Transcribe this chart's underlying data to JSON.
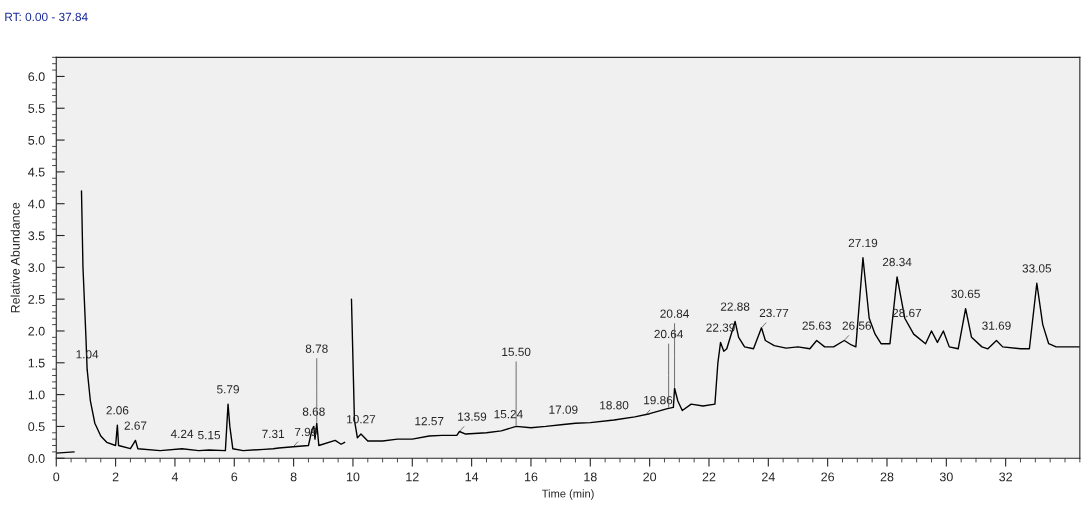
{
  "chart_data": {
    "type": "line",
    "title": "RT: 0.00 - 37.84",
    "xlabel": "Time (min)",
    "ylabel": "Relative Abundance",
    "xlim": [
      0,
      34.5
    ],
    "ylim": [
      0,
      6.3
    ],
    "xticks": [
      0,
      2,
      4,
      6,
      8,
      10,
      12,
      14,
      16,
      18,
      20,
      22,
      24,
      26,
      28,
      30,
      32
    ],
    "yticks": [
      {
        "value": 0,
        "label": "0.0"
      },
      0.5,
      {
        "value": 1,
        "label": "1.0"
      },
      1.5,
      {
        "value": 2,
        "label": "2.0"
      },
      2.5,
      {
        "value": 3,
        "label": "3.0"
      },
      3.5,
      {
        "value": 4,
        "label": "4.0"
      },
      4.5,
      {
        "value": 5,
        "label": "5.0"
      },
      5.5,
      {
        "value": 6,
        "label": "6.0"
      }
    ],
    "grid": false,
    "legend": false,
    "marker": "none",
    "line_style": "solid",
    "series": [
      {
        "color": "#000000",
        "x": [
          0,
          0.6,
          0.62,
          0.8,
          0.85,
          0.9,
          1.0,
          1.04,
          1.15,
          1.3,
          1.5,
          1.7,
          2.0,
          2.06,
          2.1,
          2.5,
          2.67,
          2.75,
          3.5,
          4.24,
          4.8,
          5.15,
          5.7,
          5.79,
          5.85,
          5.95,
          6.3,
          7.0,
          7.31,
          7.5,
          7.99,
          8.5,
          8.62,
          8.68,
          8.72,
          8.78,
          8.85,
          9.4,
          9.6,
          9.72,
          9.78,
          9.9,
          9.95,
          10.05,
          10.15,
          10.27,
          10.5,
          11.0,
          11.5,
          12.0,
          12.57,
          13.0,
          13.5,
          13.59,
          13.8,
          14.5,
          15.0,
          15.5,
          16.0,
          16.5,
          17.09,
          17.5,
          18.0,
          18.8,
          19.5,
          20.0,
          20.6,
          20.8,
          20.84,
          20.95,
          21.1,
          21.4,
          21.8,
          22.2,
          22.3,
          22.39,
          22.5,
          22.6,
          22.88,
          23.0,
          23.2,
          23.5,
          23.77,
          23.9,
          24.2,
          24.6,
          25.0,
          25.4,
          25.63,
          25.9,
          26.2,
          26.56,
          26.8,
          26.95,
          27.19,
          27.4,
          27.6,
          27.8,
          28.1,
          28.34,
          28.6,
          28.9,
          29.3,
          29.5,
          29.7,
          29.9,
          30.1,
          30.4,
          30.65,
          30.85,
          31.2,
          31.4,
          31.69,
          31.9,
          32.5,
          32.8,
          33.05,
          33.25,
          33.45,
          33.7,
          34.5
        ],
        "values": [
          0.08,
          0.1,
          null,
          null,
          4.2,
          3.0,
          1.9,
          1.4,
          0.9,
          0.55,
          0.35,
          0.25,
          0.2,
          0.52,
          0.2,
          0.15,
          0.28,
          0.15,
          0.12,
          0.15,
          0.12,
          0.13,
          0.12,
          0.85,
          0.5,
          0.15,
          0.12,
          0.14,
          0.15,
          0.16,
          0.18,
          0.2,
          0.45,
          0.5,
          0.3,
          0.55,
          0.2,
          0.28,
          0.22,
          0.25,
          null,
          null,
          2.5,
          0.6,
          0.32,
          0.38,
          0.27,
          0.27,
          0.3,
          0.3,
          0.35,
          0.36,
          0.36,
          0.42,
          0.38,
          0.4,
          0.43,
          0.5,
          0.48,
          0.5,
          0.53,
          0.55,
          0.56,
          0.6,
          0.65,
          0.7,
          0.78,
          0.8,
          1.1,
          0.9,
          0.75,
          0.85,
          0.82,
          0.85,
          1.5,
          1.82,
          1.68,
          1.72,
          2.15,
          1.9,
          1.75,
          1.72,
          2.05,
          1.85,
          1.77,
          1.73,
          1.75,
          1.72,
          1.85,
          1.75,
          1.75,
          1.85,
          1.78,
          1.75,
          3.15,
          2.2,
          1.95,
          1.8,
          1.8,
          2.85,
          2.2,
          1.95,
          1.8,
          2.0,
          1.82,
          2.0,
          1.75,
          1.72,
          2.35,
          1.9,
          1.75,
          1.72,
          1.85,
          1.75,
          1.72,
          1.72,
          2.75,
          2.1,
          1.8,
          1.75,
          1.75
        ]
      }
    ],
    "annotations": [
      {
        "text": "1.04",
        "x": 1.04,
        "y": 1.4
      },
      {
        "text": "2.06",
        "x": 2.06,
        "y": 0.52
      },
      {
        "text": "2.67",
        "x": 2.67,
        "y": 0.28
      },
      {
        "text": "4.24",
        "x": 4.24,
        "y": 0.15
      },
      {
        "text": "5.15",
        "x": 5.15,
        "y": 0.13
      },
      {
        "text": "5.79",
        "x": 5.79,
        "y": 0.85
      },
      {
        "text": "7.31",
        "x": 7.31,
        "y": 0.15
      },
      {
        "text": "7.99",
        "x": 7.99,
        "y": 0.18
      },
      {
        "text": "8.68",
        "x": 8.68,
        "y": 0.5
      },
      {
        "text": "8.78",
        "x": 8.78,
        "y": 0.55
      },
      {
        "text": "10.27",
        "x": 10.27,
        "y": 0.38
      },
      {
        "text": "12.57",
        "x": 12.57,
        "y": 0.35
      },
      {
        "text": "13.59",
        "x": 13.59,
        "y": 0.42
      },
      {
        "text": "15.24",
        "x": 15.24,
        "y": 0.46
      },
      {
        "text": "15.50",
        "x": 15.5,
        "y": 0.5
      },
      {
        "text": "17.09",
        "x": 17.09,
        "y": 0.53
      },
      {
        "text": "18.80",
        "x": 18.8,
        "y": 0.6
      },
      {
        "text": "19.86",
        "x": 19.86,
        "y": 0.68
      },
      {
        "text": "20.64",
        "x": 20.64,
        "y": 0.78
      },
      {
        "text": "20.84",
        "x": 20.84,
        "y": 1.1
      },
      {
        "text": "22.39",
        "x": 22.39,
        "y": 1.82
      },
      {
        "text": "22.88",
        "x": 22.88,
        "y": 2.15
      },
      {
        "text": "23.77",
        "x": 23.77,
        "y": 2.05
      },
      {
        "text": "25.63",
        "x": 25.63,
        "y": 1.85
      },
      {
        "text": "26.56",
        "x": 26.56,
        "y": 1.85
      },
      {
        "text": "27.19",
        "x": 27.19,
        "y": 3.15
      },
      {
        "text": "28.34",
        "x": 28.34,
        "y": 2.85
      },
      {
        "text": "28.67",
        "x": 28.67,
        "y": 2.05
      },
      {
        "text": "30.65",
        "x": 30.65,
        "y": 2.35
      },
      {
        "text": "31.69",
        "x": 31.69,
        "y": 1.85
      },
      {
        "text": "33.05",
        "x": 33.05,
        "y": 2.75
      }
    ]
  }
}
